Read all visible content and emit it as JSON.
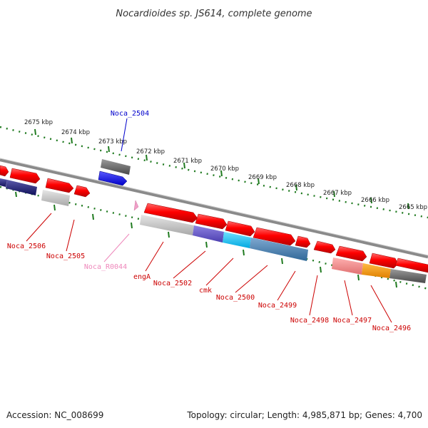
{
  "title": "Nocardioides sp. JS614, complete genome",
  "footer": {
    "accession": "Accession: NC_008699",
    "summary": "Topology: circular; Length: 4,985,871 bp; Genes: 4,700"
  },
  "ruler": {
    "unit": "kbp",
    "ticks": [
      "2675 kbp",
      "2674 kbp",
      "2673 kbp",
      "2672 kbp",
      "2671 kbp",
      "2670 kbp",
      "2669 kbp",
      "2668 kbp",
      "2667 kbp",
      "2666 kbp",
      "2665 kbp"
    ]
  },
  "colors": {
    "backbone": "#8a8a8a",
    "ruler": "#1f7a1f",
    "gene_forward": "#ff0000",
    "default_label": "#cc0000"
  },
  "genes": [
    {
      "label": "Noca_2504",
      "color": "#0000cc"
    },
    {
      "label": "Noca_2506",
      "color": "#cc0000"
    },
    {
      "label": "Noca_2505",
      "color": "#cc0000"
    },
    {
      "label": "Noca_R0044",
      "color": "#ee88bb"
    },
    {
      "label": "engA",
      "color": "#cc0000"
    },
    {
      "label": "Noca_2502",
      "color": "#cc0000"
    },
    {
      "label": "cmk",
      "color": "#cc0000"
    },
    {
      "label": "Noca_2500",
      "color": "#cc0000"
    },
    {
      "label": "Noca_2499",
      "color": "#cc0000"
    },
    {
      "label": "Noca_2498",
      "color": "#cc0000"
    },
    {
      "label": "Noca_2497",
      "color": "#cc0000"
    },
    {
      "label": "Noca_2496",
      "color": "#cc0000"
    }
  ]
}
